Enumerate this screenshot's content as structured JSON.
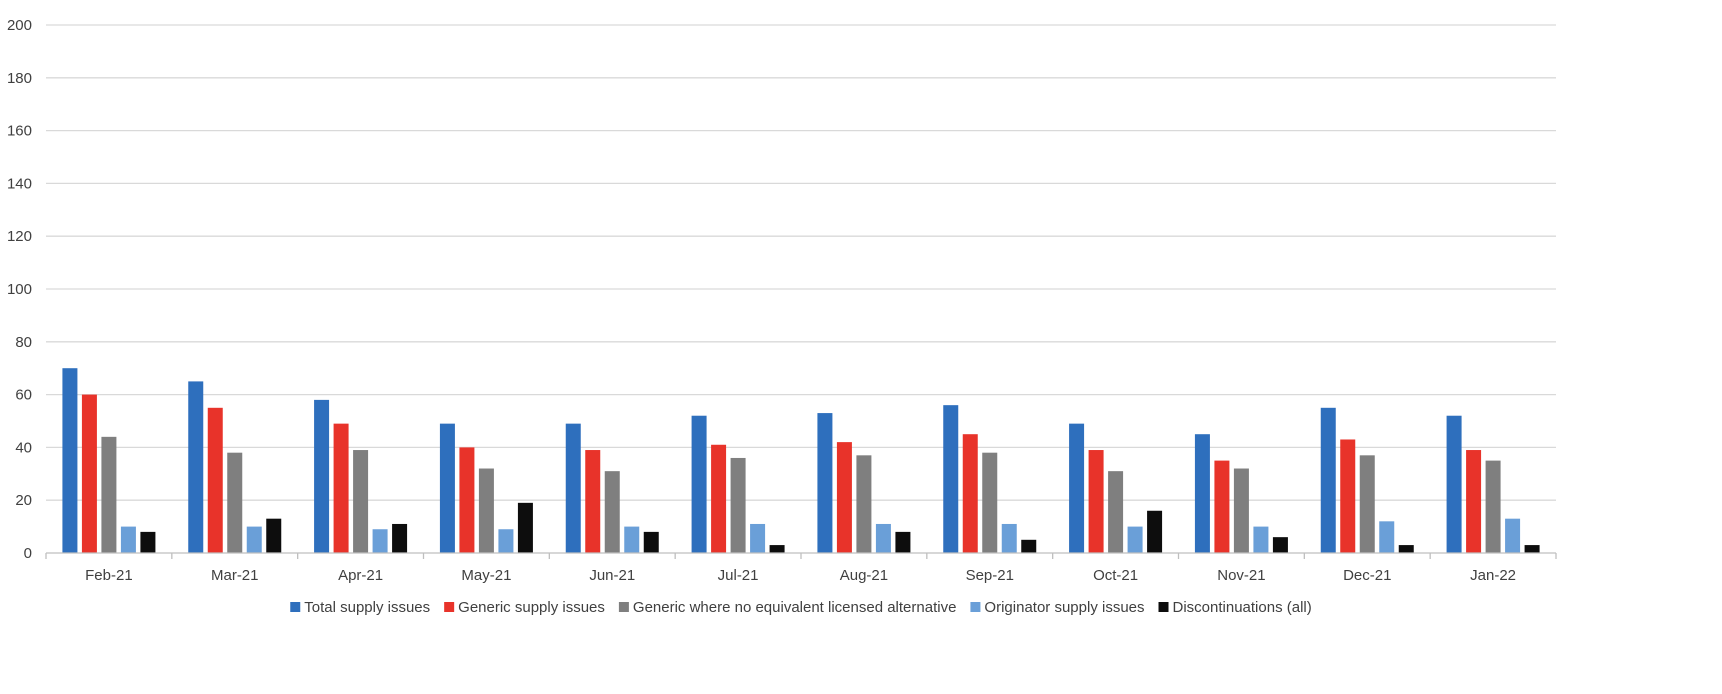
{
  "chart_data": {
    "type": "bar",
    "title": "",
    "xlabel": "",
    "ylabel": "",
    "ylim": [
      0,
      200
    ],
    "yticks": [
      0,
      20,
      40,
      60,
      80,
      100,
      120,
      140,
      160,
      180,
      200
    ],
    "grid": true,
    "legend_position": "bottom",
    "categories": [
      "Feb-21",
      "Mar-21",
      "Apr-21",
      "May-21",
      "Jun-21",
      "Jul-21",
      "Aug-21",
      "Sep-21",
      "Oct-21",
      "Nov-21",
      "Dec-21",
      "Jan-22"
    ],
    "series": [
      {
        "name": "Total supply issues",
        "color": "#2e6fbd",
        "values": [
          70,
          65,
          58,
          49,
          49,
          52,
          53,
          56,
          49,
          45,
          55,
          52
        ]
      },
      {
        "name": "Generic supply issues",
        "color": "#e8332a",
        "values": [
          60,
          55,
          49,
          40,
          39,
          41,
          42,
          45,
          39,
          35,
          43,
          39
        ]
      },
      {
        "name": "Generic where no equivalent licensed alternative",
        "color": "#7f7f7f",
        "values": [
          44,
          38,
          39,
          32,
          31,
          36,
          37,
          38,
          31,
          32,
          37,
          35
        ]
      },
      {
        "name": "Originator supply issues",
        "color": "#6a9fd8",
        "values": [
          10,
          10,
          9,
          9,
          10,
          11,
          11,
          11,
          10,
          10,
          12,
          13
        ]
      },
      {
        "name": "Discontinuations (all)",
        "color": "#0d0d0d",
        "values": [
          8,
          13,
          11,
          19,
          8,
          3,
          8,
          5,
          16,
          6,
          3,
          3
        ]
      }
    ]
  }
}
